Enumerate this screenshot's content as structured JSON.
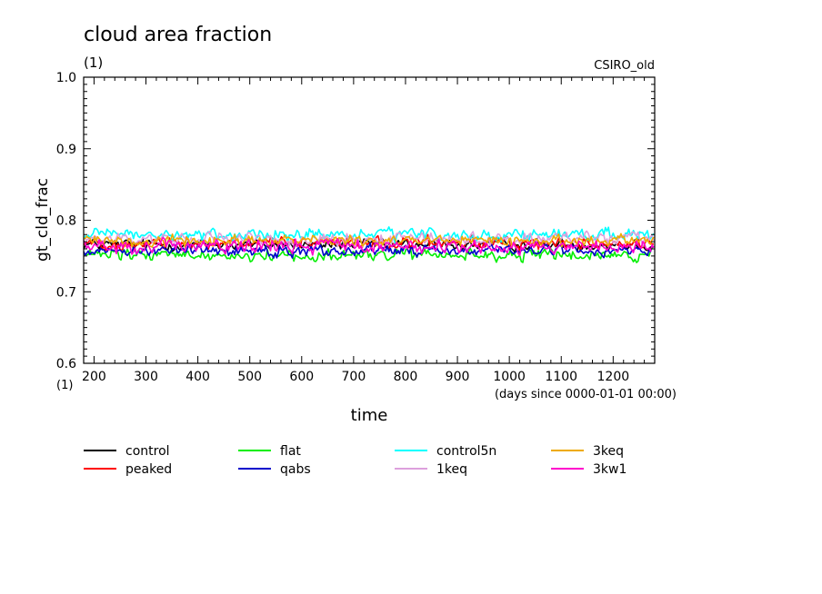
{
  "chart_data": {
    "type": "line",
    "title": "cloud area fraction",
    "subtitle_left": "(1)",
    "subtitle_right": "CSIRO_old",
    "ylabel": "gt_cld_frac",
    "y_unit": "(1)",
    "xlabel": "time",
    "x_unit": "(days since 0000-01-01 00:00)",
    "xlim": [
      180,
      1280
    ],
    "ylim": [
      0.6,
      1.0
    ],
    "x_ticks": [
      200,
      300,
      400,
      500,
      600,
      700,
      800,
      900,
      1000,
      1100,
      1200
    ],
    "x_tick_labels": [
      "200",
      "300",
      "400",
      "500",
      "600",
      "700",
      "800",
      "900",
      "1000",
      "1100",
      "1200"
    ],
    "y_ticks": [
      0.6,
      0.7,
      0.8,
      0.9,
      1.0
    ],
    "y_tick_labels": [
      "0.6",
      "0.7",
      "0.8",
      "0.9",
      "1.0"
    ],
    "series": [
      {
        "name": "control",
        "color": "#000000",
        "mean": 0.766,
        "amp": 0.008
      },
      {
        "name": "peaked",
        "color": "#ff0000",
        "mean": 0.768,
        "amp": 0.009
      },
      {
        "name": "flat",
        "color": "#00ee00",
        "mean": 0.751,
        "amp": 0.009
      },
      {
        "name": "qabs",
        "color": "#0000cc",
        "mean": 0.758,
        "amp": 0.008
      },
      {
        "name": "control5n",
        "color": "#00ffff",
        "mean": 0.779,
        "amp": 0.009
      },
      {
        "name": "1keq",
        "color": "#dda0dd",
        "mean": 0.774,
        "amp": 0.009
      },
      {
        "name": "3keq",
        "color": "#eeaa00",
        "mean": 0.772,
        "amp": 0.008
      },
      {
        "name": "3kw1",
        "color": "#ff00cc",
        "mean": 0.763,
        "amp": 0.01
      }
    ]
  }
}
